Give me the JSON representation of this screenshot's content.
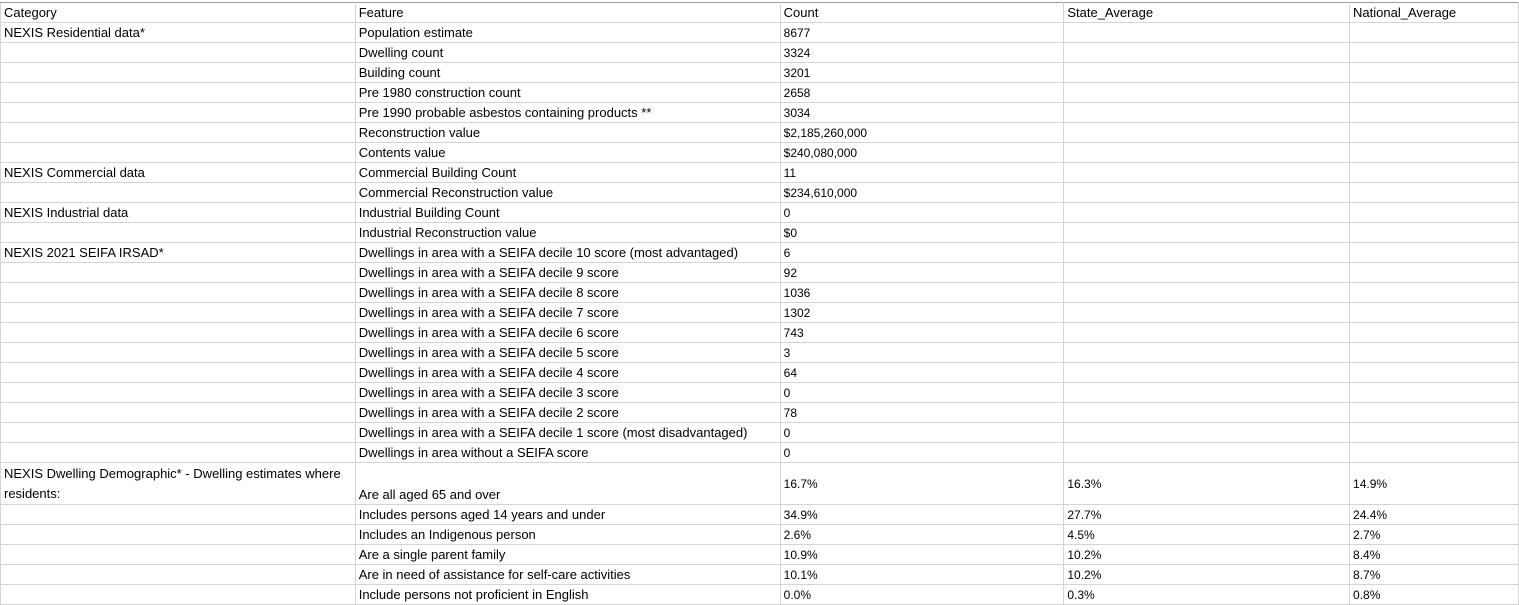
{
  "headers": [
    "Category",
    "Feature",
    "Count",
    "State_Average",
    "National_Average"
  ],
  "rows": [
    [
      "NEXIS Residential data*",
      "Population estimate",
      "8677",
      "",
      ""
    ],
    [
      "",
      "Dwelling count",
      "3324",
      "",
      ""
    ],
    [
      "",
      "Building count",
      "3201",
      "",
      ""
    ],
    [
      "",
      "Pre 1980 construction count",
      "2658",
      "",
      ""
    ],
    [
      "",
      "Pre 1990 probable asbestos containing products **",
      "3034",
      "",
      ""
    ],
    [
      "",
      "Reconstruction value",
      "$2,185,260,000",
      "",
      ""
    ],
    [
      "",
      "Contents value",
      "$240,080,000",
      "",
      ""
    ],
    [
      "NEXIS Commercial data",
      "Commercial Building Count",
      "11",
      "",
      ""
    ],
    [
      "",
      "Commercial Reconstruction value",
      "$234,610,000",
      "",
      ""
    ],
    [
      "NEXIS Industrial data",
      "Industrial Building Count",
      "0",
      "",
      ""
    ],
    [
      "",
      "Industrial Reconstruction value",
      "$0",
      "",
      ""
    ],
    [
      "NEXIS 2021 SEIFA IRSAD*",
      "Dwellings in area with a SEIFA decile 10 score (most advantaged)",
      "6",
      "",
      ""
    ],
    [
      "",
      "Dwellings in area with a SEIFA decile 9 score",
      "92",
      "",
      ""
    ],
    [
      "",
      "Dwellings in area with a SEIFA decile 8 score",
      "1036",
      "",
      ""
    ],
    [
      "",
      "Dwellings in area with a SEIFA decile 7 score",
      "1302",
      "",
      ""
    ],
    [
      "",
      "Dwellings in area with a SEIFA decile 6 score",
      "743",
      "",
      ""
    ],
    [
      "",
      "Dwellings in area with a SEIFA decile 5 score",
      "3",
      "",
      ""
    ],
    [
      "",
      "Dwellings in area with a SEIFA decile 4 score",
      "64",
      "",
      ""
    ],
    [
      "",
      "Dwellings in area with a SEIFA decile 3 score",
      "0",
      "",
      ""
    ],
    [
      "",
      "Dwellings in area with a SEIFA decile 2 score",
      "78",
      "",
      ""
    ],
    [
      "",
      "Dwellings in area with a SEIFA decile 1 score (most disadvantaged)",
      "0",
      "",
      ""
    ],
    [
      "",
      "Dwellings in area without a SEIFA score",
      "0",
      "",
      ""
    ],
    [
      "NEXIS Dwelling Demographic* - Dwelling estimates where residents:",
      "Are all aged 65 and over",
      "16.7%",
      "16.3%",
      "14.9%"
    ],
    [
      "",
      "Includes persons aged 14 years and under",
      "34.9%",
      "27.7%",
      "24.4%"
    ],
    [
      "",
      "Includes an Indigenous person",
      "2.6%",
      "4.5%",
      "2.7%"
    ],
    [
      "",
      "Are a single parent family",
      "10.9%",
      "10.2%",
      "8.4%"
    ],
    [
      "",
      "Are in need of assistance for self-care activities",
      "10.1%",
      "10.2%",
      "8.7%"
    ],
    [
      "",
      "Include persons not proficient in English",
      "0.0%",
      "0.3%",
      "0.8%"
    ]
  ]
}
